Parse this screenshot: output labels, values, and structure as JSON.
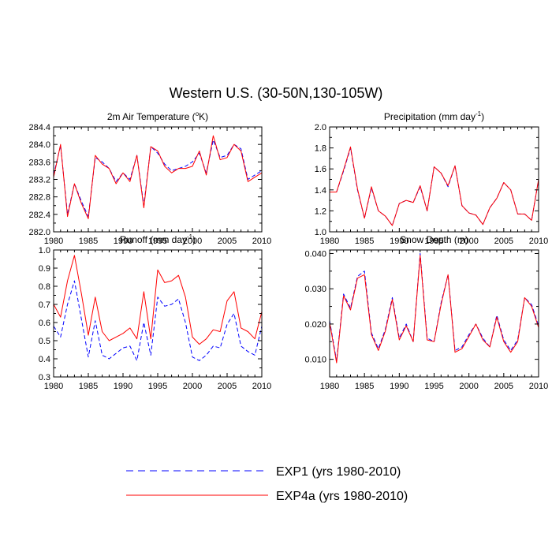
{
  "figure_title": "Western U.S. (30-50N,130-105W)",
  "legend": {
    "entries": [
      {
        "label": "EXP1 (yrs 1980-2010)",
        "color": "#0000ff",
        "style": "dashed"
      },
      {
        "label": "EXP4a (yrs 1980-2010)",
        "color": "#ff0000",
        "style": "solid"
      }
    ]
  },
  "chart_data": [
    {
      "type": "line",
      "title_main": "2m Air Temperature (",
      "title_sup": "o",
      "title_end": "K)",
      "xlim": [
        1980,
        2010
      ],
      "ylim": [
        282.0,
        284.4
      ],
      "xticks": [
        1980,
        1985,
        1990,
        1995,
        2000,
        2005,
        2010
      ],
      "yticks": [
        282.0,
        282.4,
        282.8,
        283.2,
        283.6,
        284.0,
        284.4
      ],
      "ytick_labels": [
        "282.0",
        "282.4",
        "282.8",
        "283.2",
        "283.6",
        "284.0",
        "284.4"
      ],
      "x": [
        1980,
        1981,
        1982,
        1983,
        1984,
        1985,
        1986,
        1987,
        1988,
        1989,
        1990,
        1991,
        1992,
        1993,
        1994,
        1995,
        1996,
        1997,
        1998,
        1999,
        2000,
        2001,
        2002,
        2003,
        2004,
        2005,
        2006,
        2007,
        2008,
        2009,
        2010
      ],
      "series": [
        {
          "name": "EXP1 (yrs 1980-2010)",
          "color": "#0000ff",
          "style": "dashed",
          "values": [
            283.3,
            283.98,
            282.4,
            283.1,
            282.7,
            282.35,
            283.7,
            283.6,
            283.45,
            283.15,
            283.35,
            283.2,
            283.75,
            282.6,
            283.95,
            283.8,
            283.55,
            283.4,
            283.45,
            283.5,
            283.6,
            283.8,
            283.35,
            284.1,
            283.7,
            283.75,
            284.0,
            283.9,
            283.2,
            283.3,
            283.4
          ]
        },
        {
          "name": "EXP4a (yrs 1980-2010)",
          "color": "#ff0000",
          "style": "solid",
          "values": [
            283.25,
            284.0,
            282.35,
            283.1,
            282.65,
            282.3,
            283.75,
            283.55,
            283.45,
            283.1,
            283.35,
            283.15,
            283.75,
            282.55,
            283.95,
            283.85,
            283.5,
            283.35,
            283.45,
            283.45,
            283.5,
            283.85,
            283.3,
            284.2,
            283.65,
            283.7,
            284.0,
            283.85,
            283.15,
            283.25,
            283.35
          ]
        }
      ]
    },
    {
      "type": "line",
      "title_main": "Precipitation (mm day",
      "title_sup": "-1",
      "title_end": ")",
      "xlim": [
        1980,
        2010
      ],
      "ylim": [
        1.0,
        2.0
      ],
      "xticks": [
        1980,
        1985,
        1990,
        1995,
        2000,
        2005,
        2010
      ],
      "yticks": [
        1.0,
        1.2,
        1.4,
        1.6,
        1.8,
        2.0
      ],
      "ytick_labels": [
        "1.0",
        "1.2",
        "1.4",
        "1.6",
        "1.8",
        "2.0"
      ],
      "x": [
        1980,
        1981,
        1982,
        1983,
        1984,
        1985,
        1986,
        1987,
        1988,
        1989,
        1990,
        1991,
        1992,
        1993,
        1994,
        1995,
        1996,
        1997,
        1998,
        1999,
        2000,
        2001,
        2002,
        2003,
        2004,
        2005,
        2006,
        2007,
        2008,
        2009,
        2010
      ],
      "series": [
        {
          "name": "EXP1 (yrs 1980-2010)",
          "color": "#0000ff",
          "style": "dashed",
          "values": [
            1.38,
            1.38,
            1.58,
            1.8,
            1.4,
            1.13,
            1.42,
            1.2,
            1.15,
            1.06,
            1.27,
            1.3,
            1.28,
            1.43,
            1.2,
            1.62,
            1.56,
            1.43,
            1.63,
            1.25,
            1.18,
            1.16,
            1.07,
            1.23,
            1.32,
            1.47,
            1.4,
            1.17,
            1.17,
            1.11,
            1.5
          ]
        },
        {
          "name": "EXP4a (yrs 1980-2010)",
          "color": "#ff0000",
          "style": "solid",
          "values": [
            1.38,
            1.38,
            1.59,
            1.81,
            1.41,
            1.13,
            1.43,
            1.2,
            1.15,
            1.06,
            1.27,
            1.3,
            1.28,
            1.44,
            1.2,
            1.62,
            1.56,
            1.44,
            1.63,
            1.25,
            1.18,
            1.16,
            1.07,
            1.23,
            1.32,
            1.47,
            1.4,
            1.17,
            1.17,
            1.11,
            1.5
          ]
        }
      ]
    },
    {
      "type": "line",
      "title_main": "Runoff (mm day",
      "title_sup": "-1",
      "title_end": ")",
      "xlim": [
        1980,
        2010
      ],
      "ylim": [
        0.3,
        1.0
      ],
      "xticks": [
        1980,
        1985,
        1990,
        1995,
        2000,
        2005,
        2010
      ],
      "yticks": [
        0.3,
        0.4,
        0.5,
        0.6,
        0.7,
        0.8,
        0.9,
        1.0
      ],
      "ytick_labels": [
        "0.3",
        "0.4",
        "0.5",
        "0.6",
        "0.7",
        "0.8",
        "0.9",
        "1.0"
      ],
      "x": [
        1980,
        1981,
        1982,
        1983,
        1984,
        1985,
        1986,
        1987,
        1988,
        1989,
        1990,
        1991,
        1992,
        1993,
        1994,
        1995,
        1996,
        1997,
        1998,
        1999,
        2000,
        2001,
        2002,
        2003,
        2004,
        2005,
        2006,
        2007,
        2008,
        2009,
        2010
      ],
      "series": [
        {
          "name": "EXP1 (yrs 1980-2010)",
          "color": "#0000ff",
          "style": "dashed",
          "values": [
            0.58,
            0.52,
            0.7,
            0.83,
            0.62,
            0.41,
            0.61,
            0.42,
            0.4,
            0.43,
            0.46,
            0.47,
            0.39,
            0.6,
            0.42,
            0.74,
            0.69,
            0.7,
            0.73,
            0.6,
            0.41,
            0.39,
            0.42,
            0.47,
            0.46,
            0.59,
            0.65,
            0.47,
            0.44,
            0.42,
            0.58
          ]
        },
        {
          "name": "EXP4a (yrs 1980-2010)",
          "color": "#ff0000",
          "style": "solid",
          "values": [
            0.7,
            0.63,
            0.83,
            0.97,
            0.76,
            0.53,
            0.74,
            0.55,
            0.5,
            0.52,
            0.54,
            0.57,
            0.51,
            0.77,
            0.51,
            0.89,
            0.82,
            0.83,
            0.86,
            0.74,
            0.52,
            0.48,
            0.51,
            0.56,
            0.55,
            0.72,
            0.77,
            0.57,
            0.55,
            0.51,
            0.66
          ]
        }
      ]
    },
    {
      "type": "line",
      "title_main": "Snow Depth (m)",
      "title_sup": "",
      "title_end": "",
      "xlim": [
        1980,
        2010
      ],
      "ylim": [
        0.005,
        0.041
      ],
      "xticks": [
        1980,
        1985,
        1990,
        1995,
        2000,
        2005,
        2010
      ],
      "yticks": [
        0.01,
        0.02,
        0.03,
        0.04
      ],
      "ytick_labels": [
        "0.010",
        "0.020",
        "0.030",
        "0.040"
      ],
      "x": [
        1980,
        1981,
        1982,
        1983,
        1984,
        1985,
        1986,
        1987,
        1988,
        1989,
        1990,
        1991,
        1992,
        1993,
        1994,
        1995,
        1996,
        1997,
        1998,
        1999,
        2000,
        2001,
        2002,
        2003,
        2004,
        2005,
        2006,
        2007,
        2008,
        2009,
        2010
      ],
      "series": [
        {
          "name": "EXP1 (yrs 1980-2010)",
          "color": "#0000ff",
          "style": "dashed",
          "values": [
            0.021,
            0.0095,
            0.0285,
            0.0245,
            0.0335,
            0.035,
            0.0175,
            0.013,
            0.0185,
            0.0275,
            0.016,
            0.02,
            0.015,
            0.04,
            0.016,
            0.015,
            0.026,
            0.034,
            0.0125,
            0.0135,
            0.017,
            0.02,
            0.016,
            0.0135,
            0.0225,
            0.0155,
            0.0125,
            0.0155,
            0.0275,
            0.0255,
            0.0195
          ]
        },
        {
          "name": "EXP4a (yrs 1980-2010)",
          "color": "#ff0000",
          "style": "solid",
          "values": [
            0.0205,
            0.009,
            0.028,
            0.024,
            0.033,
            0.034,
            0.017,
            0.0125,
            0.018,
            0.027,
            0.0155,
            0.0195,
            0.015,
            0.0395,
            0.0155,
            0.015,
            0.0255,
            0.034,
            0.012,
            0.013,
            0.0165,
            0.02,
            0.0155,
            0.0135,
            0.022,
            0.015,
            0.012,
            0.015,
            0.0275,
            0.025,
            0.019
          ]
        }
      ]
    }
  ]
}
